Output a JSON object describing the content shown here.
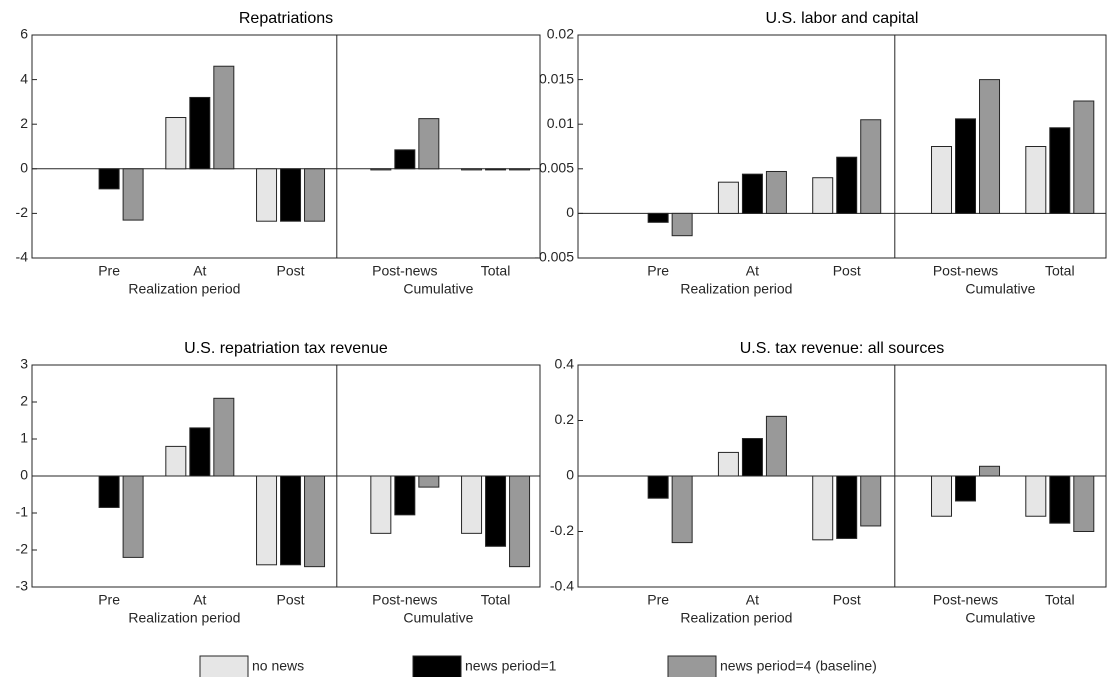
{
  "legend": [
    {
      "name": "no news",
      "color": "#e6e6e6"
    },
    {
      "name": "news period=1",
      "color": "#000000"
    },
    {
      "name": "news period=4 (baseline)",
      "color": "#999999"
    }
  ],
  "chart_data": [
    {
      "type": "bar",
      "title": "Repatriations",
      "groups": [
        {
          "label": "Realization period",
          "categories": [
            "Pre",
            "At",
            "Post"
          ]
        },
        {
          "label": "Cumulative",
          "categories": [
            "Post-news",
            "Total"
          ]
        }
      ],
      "series": [
        {
          "values": [
            0,
            2.3,
            -2.35,
            -0.05,
            -0.05
          ]
        },
        {
          "values": [
            -0.9,
            3.2,
            -2.35,
            0.85,
            -0.05
          ]
        },
        {
          "values": [
            -2.3,
            4.6,
            -2.35,
            2.25,
            -0.05
          ]
        }
      ],
      "ylim": [
        -4,
        6
      ],
      "yticks": [
        -4,
        -2,
        0,
        2,
        4,
        6
      ]
    },
    {
      "type": "bar",
      "title": "U.S. labor and capital",
      "groups": [
        {
          "label": "Realization period",
          "categories": [
            "Pre",
            "At",
            "Post"
          ]
        },
        {
          "label": "Cumulative",
          "categories": [
            "Post-news",
            "Total"
          ]
        }
      ],
      "series": [
        {
          "values": [
            0,
            0.0035,
            0.004,
            0.0075,
            0.0075
          ]
        },
        {
          "values": [
            -0.001,
            0.0044,
            0.0063,
            0.0106,
            0.0096
          ]
        },
        {
          "values": [
            -0.0025,
            0.0047,
            0.0105,
            0.015,
            0.0126
          ]
        }
      ],
      "ylim": [
        -0.005,
        0.02
      ],
      "yticks": [
        -0.005,
        0,
        0.005,
        0.01,
        0.015,
        0.02
      ]
    },
    {
      "type": "bar",
      "title": "U.S. repatriation tax revenue",
      "groups": [
        {
          "label": "Realization period",
          "categories": [
            "Pre",
            "At",
            "Post"
          ]
        },
        {
          "label": "Cumulative",
          "categories": [
            "Post-news",
            "Total"
          ]
        }
      ],
      "series": [
        {
          "values": [
            0,
            0.8,
            -2.4,
            -1.55,
            -1.55
          ]
        },
        {
          "values": [
            -0.85,
            1.3,
            -2.4,
            -1.05,
            -1.9
          ]
        },
        {
          "values": [
            -2.2,
            2.1,
            -2.45,
            -0.3,
            -2.45
          ]
        }
      ],
      "ylim": [
        -3,
        3
      ],
      "yticks": [
        -3,
        -2,
        -1,
        0,
        1,
        2,
        3
      ]
    },
    {
      "type": "bar",
      "title": "U.S. tax revenue: all sources",
      "groups": [
        {
          "label": "Realization period",
          "categories": [
            "Pre",
            "At",
            "Post"
          ]
        },
        {
          "label": "Cumulative",
          "categories": [
            "Post-news",
            "Total"
          ]
        }
      ],
      "series": [
        {
          "values": [
            0,
            0.085,
            -0.23,
            -0.145,
            -0.145
          ]
        },
        {
          "values": [
            -0.08,
            0.135,
            -0.225,
            -0.09,
            -0.17
          ]
        },
        {
          "values": [
            -0.24,
            0.215,
            -0.18,
            0.035,
            -0.2
          ]
        }
      ],
      "ylim": [
        -0.4,
        0.4
      ],
      "yticks": [
        -0.4,
        -0.2,
        0,
        0.2,
        0.4
      ]
    }
  ]
}
